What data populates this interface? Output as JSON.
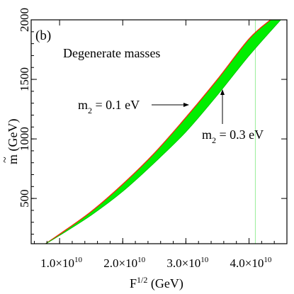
{
  "chart_data": {
    "type": "area",
    "panel_label": "(b)",
    "title": "Degenerate masses",
    "xlabel": {
      "base": "F",
      "sup": "1/2",
      "unit": " (GeV)"
    },
    "ylabel": {
      "symbol": "m",
      "accent": "~",
      "unit": " (GeV)"
    },
    "xlim": [
      5500000000.0,
      46000000000.0
    ],
    "ylim": [
      120,
      2000
    ],
    "x_ticks": [
      {
        "value": 10000000000.0,
        "mant": "1.0×10",
        "exp": "10"
      },
      {
        "value": 20000000000.0,
        "mant": "2.0×10",
        "exp": "10"
      },
      {
        "value": 30000000000.0,
        "mant": "3.0×10",
        "exp": "10"
      },
      {
        "value": 40000000000.0,
        "mant": "4.0×10",
        "exp": "10"
      }
    ],
    "y_ticks": [
      {
        "value": 500,
        "label": "500"
      },
      {
        "value": 1000,
        "label": "1000"
      },
      {
        "value": 1500,
        "label": "1500"
      },
      {
        "value": 2000,
        "label": "2000"
      }
    ],
    "series": [
      {
        "name": "m2 = 0.1 eV",
        "color": "#ff2000",
        "x": [
          7800000000.0,
          10000000000.0,
          15000000000.0,
          20000000000.0,
          25000000000.0,
          30000000000.0,
          35000000000.0,
          40000000000.0,
          43400000000.0
        ],
        "y": [
          120,
          200,
          390,
          620,
          880,
          1180,
          1500,
          1840,
          2000
        ]
      },
      {
        "name": "m2 = 0.3 eV",
        "color": "#00ee00",
        "x": [
          7800000000.0,
          10000000000.0,
          15000000000.0,
          20000000000.0,
          25000000000.0,
          30000000000.0,
          35000000000.0,
          40000000000.0,
          45000000000.0
        ],
        "y": [
          120,
          190,
          360,
          560,
          800,
          1060,
          1370,
          1700,
          2000
        ]
      }
    ],
    "vline": {
      "x": 41000000000.0,
      "color": "#99ee99"
    },
    "annotations": [
      {
        "base": "m",
        "sub": "2",
        "rest": " = 0.1 eV"
      },
      {
        "base": "m",
        "sub": "2",
        "rest": " = 0.3 eV"
      }
    ]
  }
}
